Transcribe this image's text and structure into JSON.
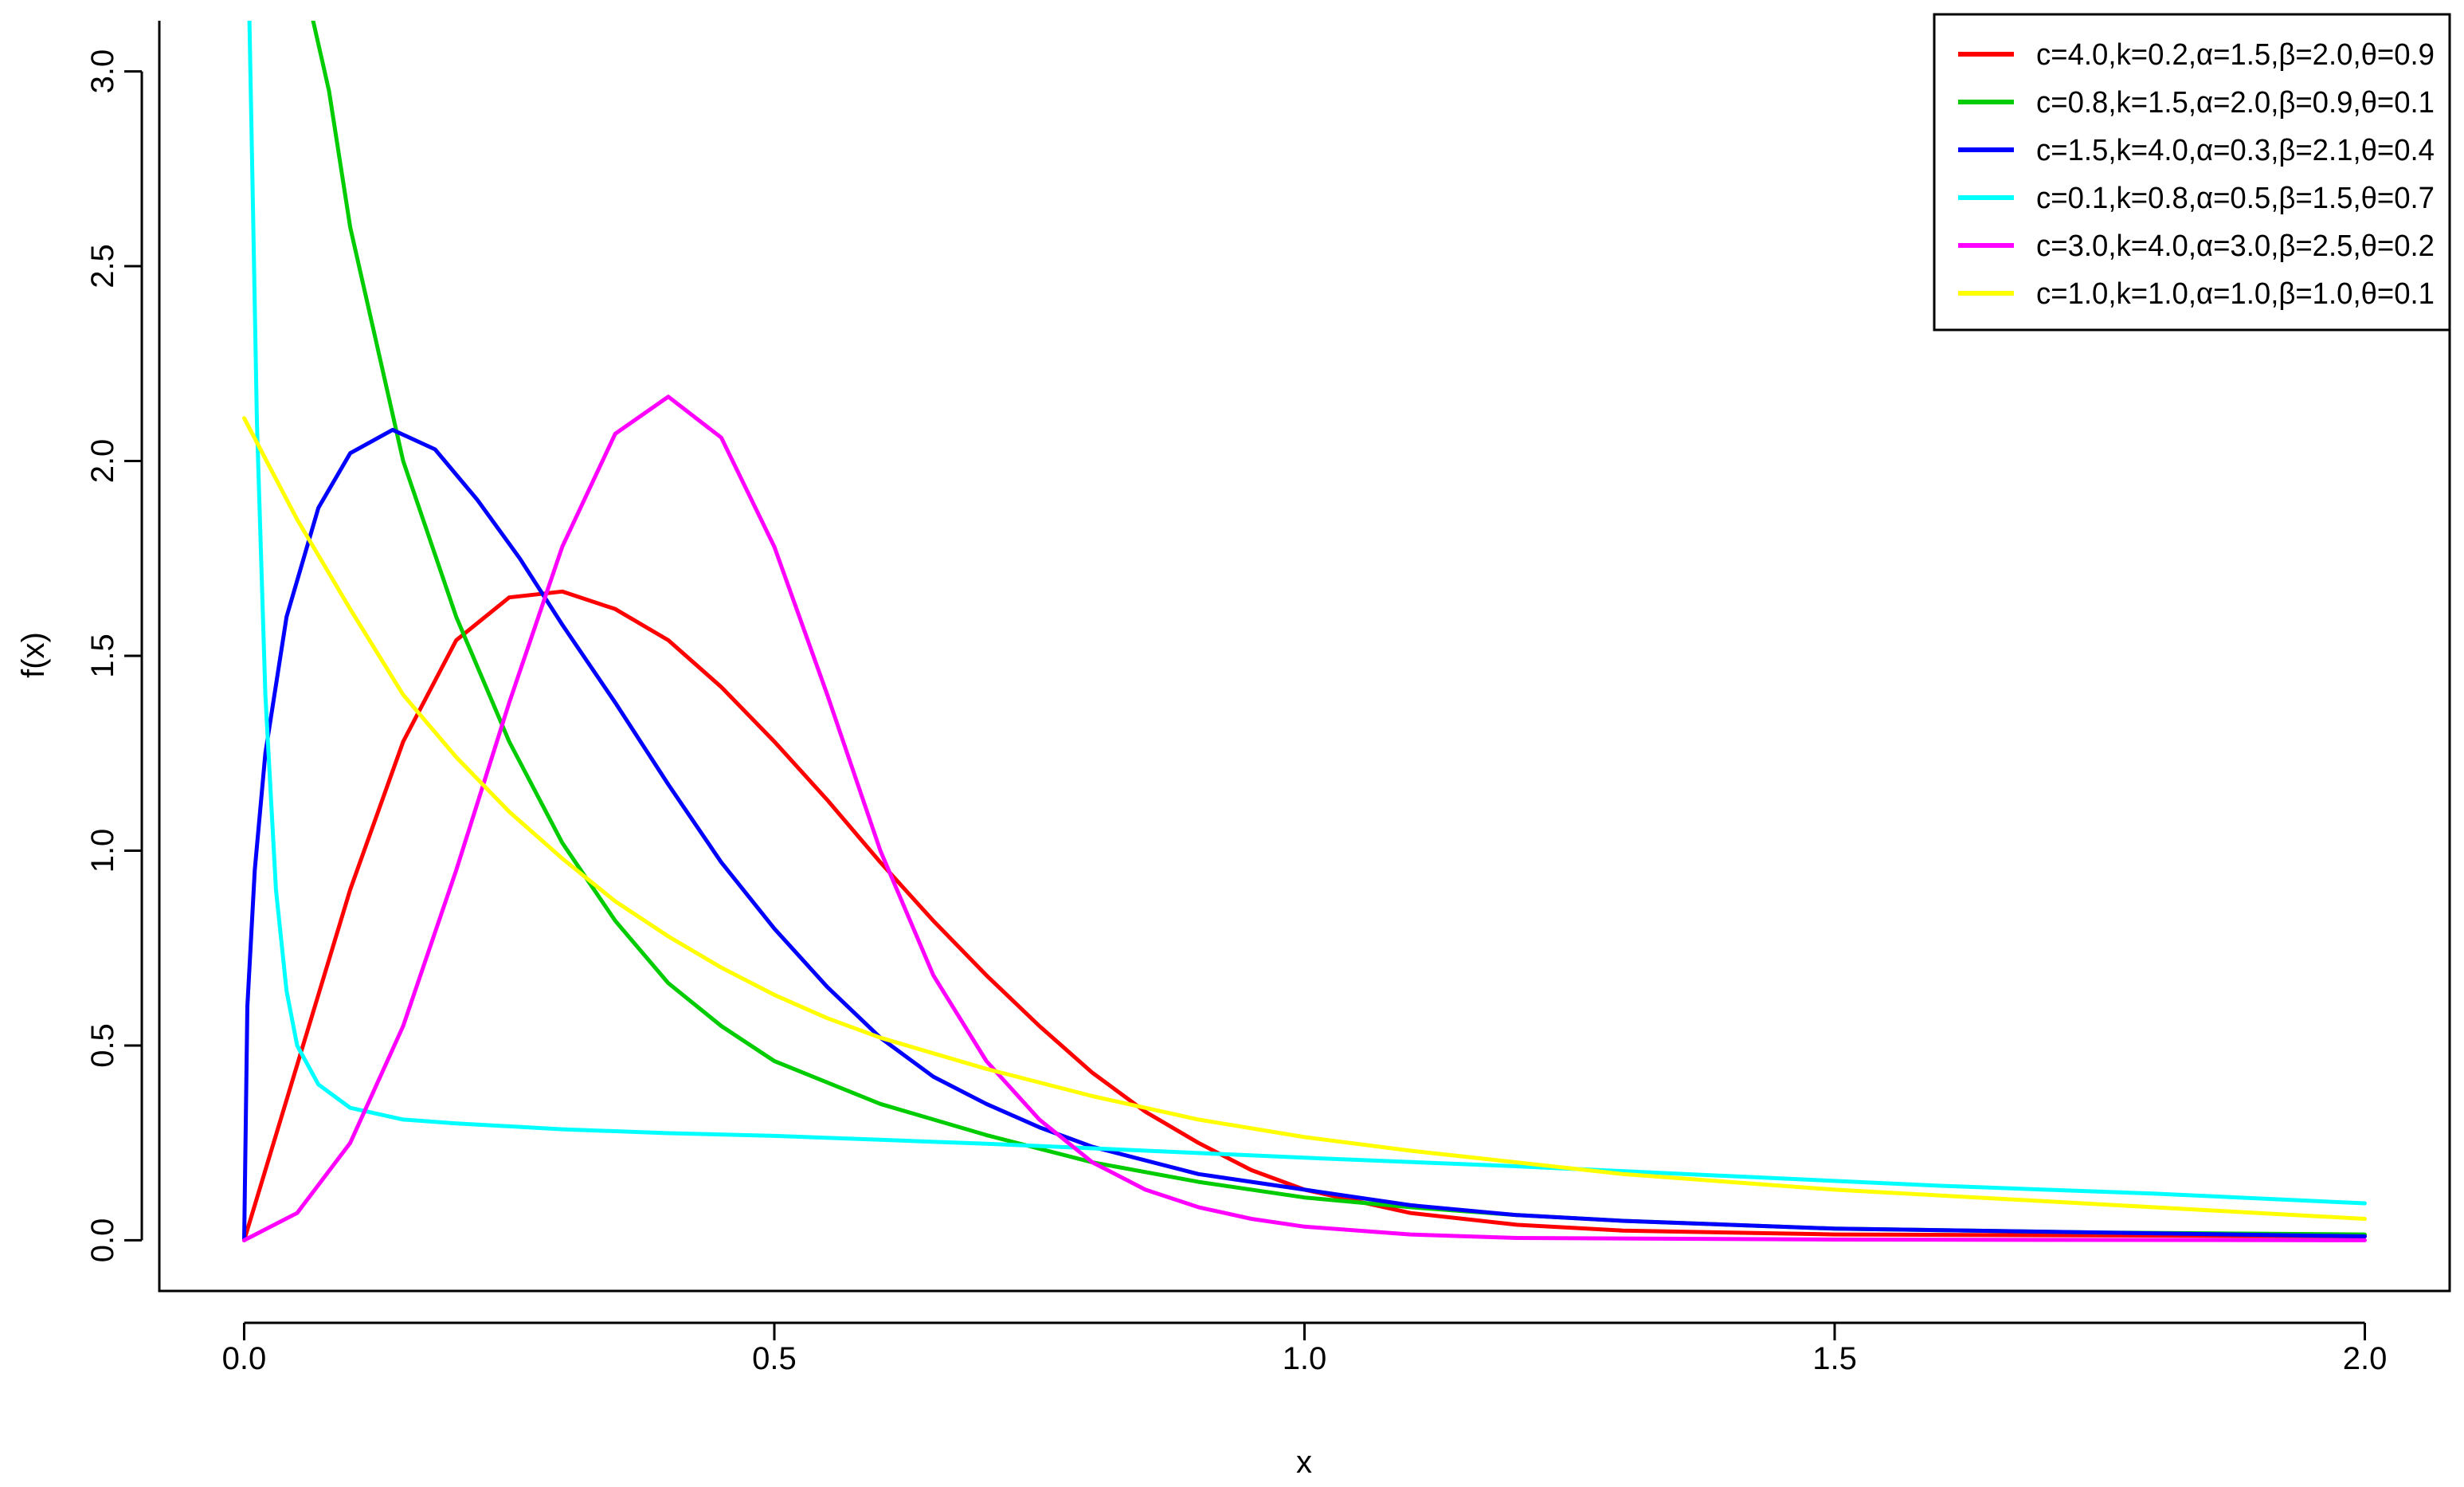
{
  "chart_data": {
    "type": "line",
    "title": "",
    "xlabel": "x",
    "ylabel": "f(x)",
    "xlim": [
      -0.08,
      2.08
    ],
    "ylim": [
      -0.13,
      3.13
    ],
    "x_ticks": [
      0.0,
      0.5,
      1.0,
      1.5,
      2.0
    ],
    "x_tick_labels": [
      "0.0",
      "0.5",
      "1.0",
      "1.5",
      "2.0"
    ],
    "y_ticks": [
      0.0,
      0.5,
      1.0,
      1.5,
      2.0,
      2.5,
      3.0
    ],
    "y_tick_labels": [
      "0.0",
      "0.5",
      "1.0",
      "1.5",
      "2.0",
      "2.5",
      "3.0"
    ],
    "grid": false,
    "legend_position": "top-right",
    "series": [
      {
        "name": "c=4.0,k=0.2,α=1.5,β=2.0,θ=0.9",
        "color": "#ff0000",
        "points": [
          [
            0,
            0
          ],
          [
            0.05,
            0.45
          ],
          [
            0.1,
            0.9
          ],
          [
            0.15,
            1.28
          ],
          [
            0.2,
            1.54
          ],
          [
            0.25,
            1.65
          ],
          [
            0.3,
            1.665
          ],
          [
            0.35,
            1.62
          ],
          [
            0.4,
            1.54
          ],
          [
            0.45,
            1.42
          ],
          [
            0.5,
            1.28
          ],
          [
            0.55,
            1.13
          ],
          [
            0.6,
            0.97
          ],
          [
            0.65,
            0.82
          ],
          [
            0.7,
            0.68
          ],
          [
            0.75,
            0.55
          ],
          [
            0.8,
            0.43
          ],
          [
            0.85,
            0.33
          ],
          [
            0.9,
            0.25
          ],
          [
            0.95,
            0.18
          ],
          [
            1.0,
            0.13
          ],
          [
            1.1,
            0.07
          ],
          [
            1.2,
            0.04
          ],
          [
            1.3,
            0.025
          ],
          [
            1.5,
            0.015
          ],
          [
            2.0,
            0.01
          ]
        ]
      },
      {
        "name": "c=0.8,k=1.5,α=2.0,β=0.9,θ=0.1",
        "color": "#00cc00",
        "points": [
          [
            0.065,
            3.13
          ],
          [
            0.08,
            2.95
          ],
          [
            0.1,
            2.6
          ],
          [
            0.125,
            2.3
          ],
          [
            0.15,
            2.0
          ],
          [
            0.2,
            1.6
          ],
          [
            0.25,
            1.28
          ],
          [
            0.3,
            1.02
          ],
          [
            0.35,
            0.82
          ],
          [
            0.4,
            0.66
          ],
          [
            0.45,
            0.55
          ],
          [
            0.5,
            0.46
          ],
          [
            0.6,
            0.35
          ],
          [
            0.7,
            0.27
          ],
          [
            0.8,
            0.2
          ],
          [
            0.9,
            0.15
          ],
          [
            1.0,
            0.11
          ],
          [
            1.1,
            0.085
          ],
          [
            1.2,
            0.065
          ],
          [
            1.3,
            0.05
          ],
          [
            1.5,
            0.03
          ],
          [
            1.75,
            0.02
          ],
          [
            2.0,
            0.015
          ]
        ]
      },
      {
        "name": "c=1.5,k=4.0,α=0.3,β=2.1,θ=0.4",
        "color": "#0000ff",
        "points": [
          [
            0,
            0
          ],
          [
            0.003,
            0.6
          ],
          [
            0.01,
            0.95
          ],
          [
            0.02,
            1.25
          ],
          [
            0.04,
            1.6
          ],
          [
            0.07,
            1.88
          ],
          [
            0.1,
            2.02
          ],
          [
            0.14,
            2.08
          ],
          [
            0.18,
            2.03
          ],
          [
            0.22,
            1.9
          ],
          [
            0.26,
            1.75
          ],
          [
            0.3,
            1.58
          ],
          [
            0.35,
            1.38
          ],
          [
            0.4,
            1.17
          ],
          [
            0.45,
            0.97
          ],
          [
            0.5,
            0.8
          ],
          [
            0.55,
            0.65
          ],
          [
            0.6,
            0.52
          ],
          [
            0.65,
            0.42
          ],
          [
            0.7,
            0.35
          ],
          [
            0.75,
            0.29
          ],
          [
            0.8,
            0.24
          ],
          [
            0.9,
            0.17
          ],
          [
            1.0,
            0.13
          ],
          [
            1.1,
            0.09
          ],
          [
            1.2,
            0.065
          ],
          [
            1.3,
            0.05
          ],
          [
            1.5,
            0.03
          ],
          [
            2.0,
            0.01
          ]
        ]
      },
      {
        "name": "c=0.1,k=0.8,α=0.5,β=1.5,θ=0.7",
        "color": "#00ffff",
        "points": [
          [
            0.005,
            3.13
          ],
          [
            0.008,
            2.7
          ],
          [
            0.012,
            2.1
          ],
          [
            0.02,
            1.4
          ],
          [
            0.03,
            0.9
          ],
          [
            0.04,
            0.64
          ],
          [
            0.05,
            0.5
          ],
          [
            0.07,
            0.4
          ],
          [
            0.1,
            0.34
          ],
          [
            0.15,
            0.31
          ],
          [
            0.2,
            0.3
          ],
          [
            0.3,
            0.285
          ],
          [
            0.4,
            0.275
          ],
          [
            0.5,
            0.268
          ],
          [
            0.6,
            0.258
          ],
          [
            0.7,
            0.248
          ],
          [
            0.8,
            0.236
          ],
          [
            0.9,
            0.224
          ],
          [
            1.0,
            0.212
          ],
          [
            1.2,
            0.19
          ],
          [
            1.4,
            0.165
          ],
          [
            1.6,
            0.14
          ],
          [
            1.8,
            0.12
          ],
          [
            2.0,
            0.095
          ]
        ]
      },
      {
        "name": "c=3.0,k=4.0,α=3.0,β=2.5,θ=0.2",
        "color": "#ff00ff",
        "points": [
          [
            0,
            0
          ],
          [
            0.05,
            0.07
          ],
          [
            0.1,
            0.25
          ],
          [
            0.15,
            0.55
          ],
          [
            0.2,
            0.95
          ],
          [
            0.25,
            1.38
          ],
          [
            0.3,
            1.78
          ],
          [
            0.35,
            2.07
          ],
          [
            0.4,
            2.165
          ],
          [
            0.45,
            2.06
          ],
          [
            0.5,
            1.78
          ],
          [
            0.55,
            1.4
          ],
          [
            0.6,
            1.0
          ],
          [
            0.65,
            0.68
          ],
          [
            0.7,
            0.46
          ],
          [
            0.75,
            0.31
          ],
          [
            0.8,
            0.2
          ],
          [
            0.85,
            0.13
          ],
          [
            0.9,
            0.085
          ],
          [
            0.95,
            0.055
          ],
          [
            1.0,
            0.035
          ],
          [
            1.1,
            0.015
          ],
          [
            1.2,
            0.006
          ],
          [
            1.5,
            0.002
          ],
          [
            2.0,
            0.0
          ]
        ]
      },
      {
        "name": "c=1.0,k=1.0,α=1.0,β=1.0,θ=0.1",
        "color": "#ffff00",
        "points": [
          [
            0,
            2.11
          ],
          [
            0.05,
            1.85
          ],
          [
            0.1,
            1.62
          ],
          [
            0.15,
            1.4
          ],
          [
            0.2,
            1.24
          ],
          [
            0.25,
            1.1
          ],
          [
            0.3,
            0.98
          ],
          [
            0.35,
            0.87
          ],
          [
            0.4,
            0.78
          ],
          [
            0.45,
            0.7
          ],
          [
            0.5,
            0.63
          ],
          [
            0.55,
            0.57
          ],
          [
            0.6,
            0.52
          ],
          [
            0.7,
            0.44
          ],
          [
            0.8,
            0.37
          ],
          [
            0.9,
            0.31
          ],
          [
            1.0,
            0.265
          ],
          [
            1.1,
            0.23
          ],
          [
            1.2,
            0.2
          ],
          [
            1.3,
            0.17
          ],
          [
            1.4,
            0.15
          ],
          [
            1.5,
            0.13
          ],
          [
            1.6,
            0.115
          ],
          [
            1.7,
            0.1
          ],
          [
            1.8,
            0.085
          ],
          [
            1.9,
            0.07
          ],
          [
            2.0,
            0.055
          ]
        ]
      }
    ]
  }
}
